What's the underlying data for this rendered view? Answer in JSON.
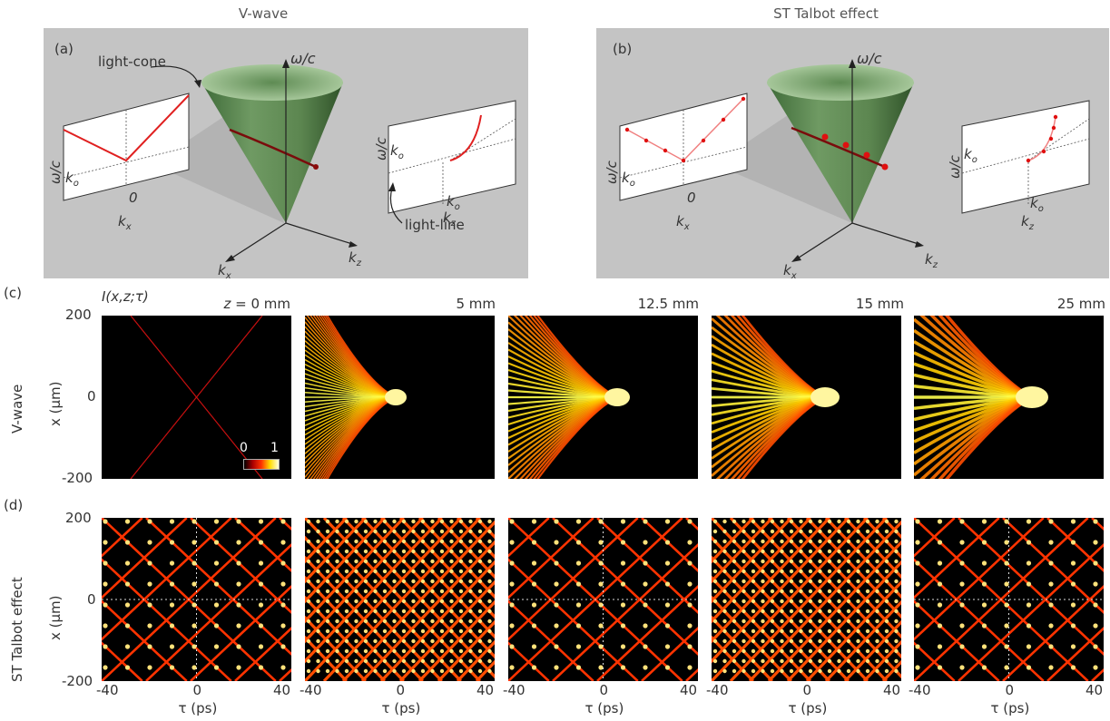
{
  "figure": {
    "titles": {
      "a": "V-wave",
      "b": "ST Talbot effect"
    },
    "panel_labels": {
      "a": "(a)",
      "b": "(b)",
      "c": "(c)",
      "d": "(d)"
    },
    "diagram_a": {
      "light_cone": "light-cone",
      "light_line": "light-line",
      "omega_c": "ω/c",
      "omega_c_side": "ω/c",
      "k_o": "k",
      "k_o_sub": "o",
      "zero": "0",
      "kx": "k",
      "kx_sub": "x",
      "kz": "k",
      "kz_sub": "z"
    },
    "diagram_b": {
      "omega_c": "ω/c",
      "omega_c_side": "ω/c",
      "k_o": "k",
      "k_o_sub": "o",
      "zero": "0",
      "kx": "k",
      "kx_sub": "x",
      "kz": "k",
      "kz_sub": "z"
    },
    "intensity_label": "I(x,z;τ)",
    "z_prefix": "z = ",
    "z_values": [
      "0 mm",
      "5 mm",
      "12.5 mm",
      "15 mm",
      "25 mm"
    ],
    "row_labels": [
      "V-wave",
      "ST Talbot effect"
    ],
    "y_axis_label": "x (μm)",
    "x_axis_label": "τ (ps)",
    "y_ticks": [
      "200",
      "0",
      "-200"
    ],
    "x_ticks": [
      "-40",
      "0",
      "40"
    ],
    "colorbar": {
      "min": "0",
      "max": "1"
    },
    "colors": {
      "panel_bg": "#c4c4c4",
      "cone": "#5f8a55",
      "curve": "#e01010"
    }
  },
  "chart_data": [
    {
      "type": "heatmap",
      "row": "V-wave",
      "z": "0 mm",
      "xlabel": "τ (ps)",
      "ylabel": "x (μm)",
      "xlim": [
        -45,
        45
      ],
      "ylim": [
        -200,
        200
      ],
      "xticks": [
        -40,
        0,
        40
      ],
      "yticks": [
        -200,
        0,
        200
      ],
      "colorbar": [
        0,
        1
      ]
    },
    {
      "type": "heatmap",
      "row": "V-wave",
      "z": "5 mm",
      "xlim": [
        -45,
        45
      ],
      "ylim": [
        -200,
        200
      ]
    },
    {
      "type": "heatmap",
      "row": "V-wave",
      "z": "12.5 mm",
      "xlim": [
        -45,
        45
      ],
      "ylim": [
        -200,
        200
      ]
    },
    {
      "type": "heatmap",
      "row": "V-wave",
      "z": "15 mm",
      "xlim": [
        -45,
        45
      ],
      "ylim": [
        -200,
        200
      ]
    },
    {
      "type": "heatmap",
      "row": "V-wave",
      "z": "25 mm",
      "xlim": [
        -45,
        45
      ],
      "ylim": [
        -200,
        200
      ]
    },
    {
      "type": "heatmap",
      "row": "ST Talbot effect",
      "z": "0 mm",
      "xlim": [
        -45,
        45
      ],
      "ylim": [
        -200,
        200
      ]
    },
    {
      "type": "heatmap",
      "row": "ST Talbot effect",
      "z": "5 mm",
      "xlim": [
        -45,
        45
      ],
      "ylim": [
        -200,
        200
      ]
    },
    {
      "type": "heatmap",
      "row": "ST Talbot effect",
      "z": "12.5 mm",
      "xlim": [
        -45,
        45
      ],
      "ylim": [
        -200,
        200
      ]
    },
    {
      "type": "heatmap",
      "row": "ST Talbot effect",
      "z": "15 mm",
      "xlim": [
        -45,
        45
      ],
      "ylim": [
        -200,
        200
      ]
    },
    {
      "type": "heatmap",
      "row": "ST Talbot effect",
      "z": "25 mm",
      "xlim": [
        -45,
        45
      ],
      "ylim": [
        -200,
        200
      ]
    }
  ]
}
